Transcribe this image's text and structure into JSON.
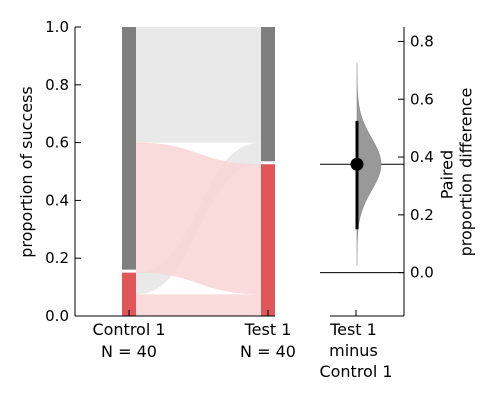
{
  "chart_data": [
    {
      "type": "sankey",
      "ylabel": "proportion of success",
      "ylim": [
        0,
        1
      ],
      "yticks": [
        "0.0",
        "0.2",
        "0.4",
        "0.6",
        "0.8",
        "1.0"
      ],
      "groups": [
        {
          "name": "Control 1",
          "n_label": "N = 40",
          "success": 0.15
        },
        {
          "name": "Test 1",
          "n_label": "N = 40",
          "success": 0.525
        }
      ],
      "flows": [
        {
          "from": "success",
          "to": "success",
          "proportion": 0.075
        },
        {
          "from": "success",
          "to": "failure",
          "proportion": 0.075
        },
        {
          "from": "failure",
          "to": "success",
          "proportion": 0.45
        },
        {
          "from": "failure",
          "to": "failure",
          "proportion": 0.4
        }
      ],
      "colors": {
        "success": "#e15759",
        "failure": "#7f7f7f",
        "flow_success": "#f8d5d5",
        "flow_failure": "#e5e5e5"
      }
    },
    {
      "type": "estimation",
      "comparison_label": "Test 1\nminus\nControl 1",
      "comparison_lines": [
        "Test 1",
        "minus",
        "Control 1"
      ],
      "ylabel_lines": [
        "Paired",
        "proportion difference"
      ],
      "yticks": [
        "0.0",
        "0.2",
        "0.4",
        "0.6",
        "0.8"
      ],
      "ylim": [
        -0.15,
        0.85
      ],
      "mean_difference": 0.375,
      "ci": [
        0.15,
        0.525
      ],
      "distribution_range": [
        0.025,
        0.725
      ],
      "colors": {
        "distribution": "#999999",
        "point": "#000000"
      }
    }
  ]
}
